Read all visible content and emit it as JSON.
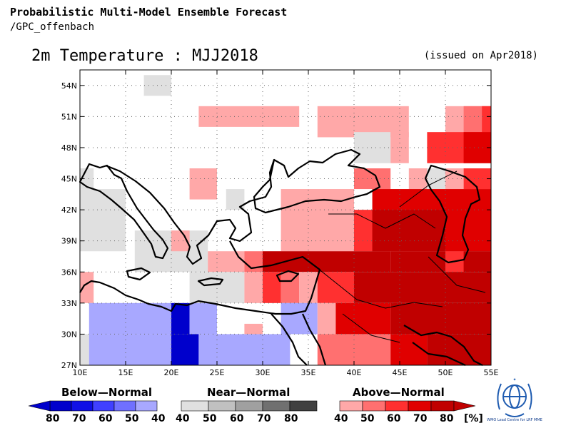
{
  "header": {
    "title": "Probabilistic Multi-Model Ensemble Forecast",
    "subtitle": "/GPC_offenbach"
  },
  "map": {
    "title": "2m Temperature : MJJ2018",
    "issued": "(issued on Apr2018)",
    "lon_labels": [
      "10E",
      "15E",
      "20E",
      "25E",
      "30E",
      "35E",
      "40E",
      "45E",
      "50E",
      "55E"
    ],
    "lat_labels": [
      "27N",
      "30N",
      "33N",
      "36N",
      "39N",
      "42N",
      "45N",
      "48N",
      "51N",
      "54N"
    ]
  },
  "legend": {
    "below_label": "Below—Normal",
    "near_label": "Near—Normal",
    "above_label": "Above—Normal",
    "below_ticks": [
      "80",
      "70",
      "60",
      "50",
      "40"
    ],
    "near_ticks": [
      "40",
      "50",
      "60",
      "70",
      "80"
    ],
    "above_ticks": [
      "40",
      "50",
      "60",
      "70",
      "80"
    ],
    "unit": "[%]",
    "colors": {
      "below": [
        "#0000cc",
        "#1010e6",
        "#4040ff",
        "#7070ff",
        "#a8a8ff"
      ],
      "near": [
        "#e0e0e0",
        "#c0c0c0",
        "#a0a0a0",
        "#707070",
        "#404040"
      ],
      "above": [
        "#ffa8a8",
        "#ff7070",
        "#ff3030",
        "#e00000",
        "#c00000"
      ]
    }
  },
  "logo": {
    "text": "WMO Lead Centre for LRF MME"
  }
}
